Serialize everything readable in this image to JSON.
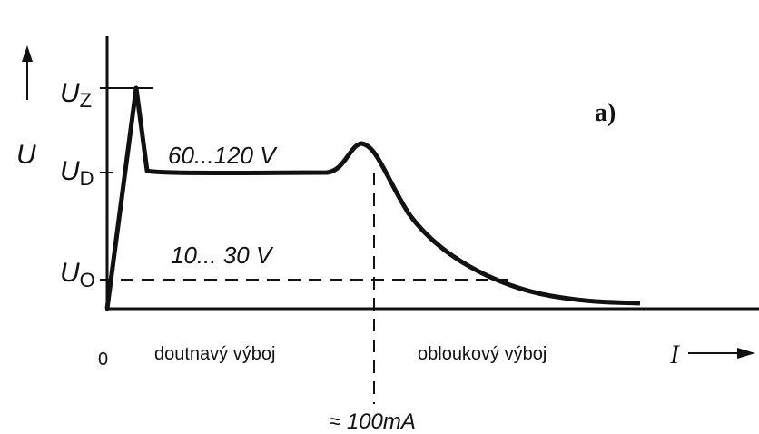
{
  "axis_labels": {
    "y": "U",
    "x": "I",
    "origin": "0"
  },
  "levels": [
    {
      "symbol": "U",
      "subscript": "Z"
    },
    {
      "symbol": "U",
      "subscript": "D"
    },
    {
      "symbol": "U",
      "subscript": "O"
    }
  ],
  "annotations": {
    "panel": "a)",
    "glow_voltage": "60...120 V",
    "arc_voltage": "10... 30 V",
    "transition_current": "≈ 100mA"
  },
  "regions": [
    "doutnavý výboj",
    "obloukový výboj"
  ]
}
